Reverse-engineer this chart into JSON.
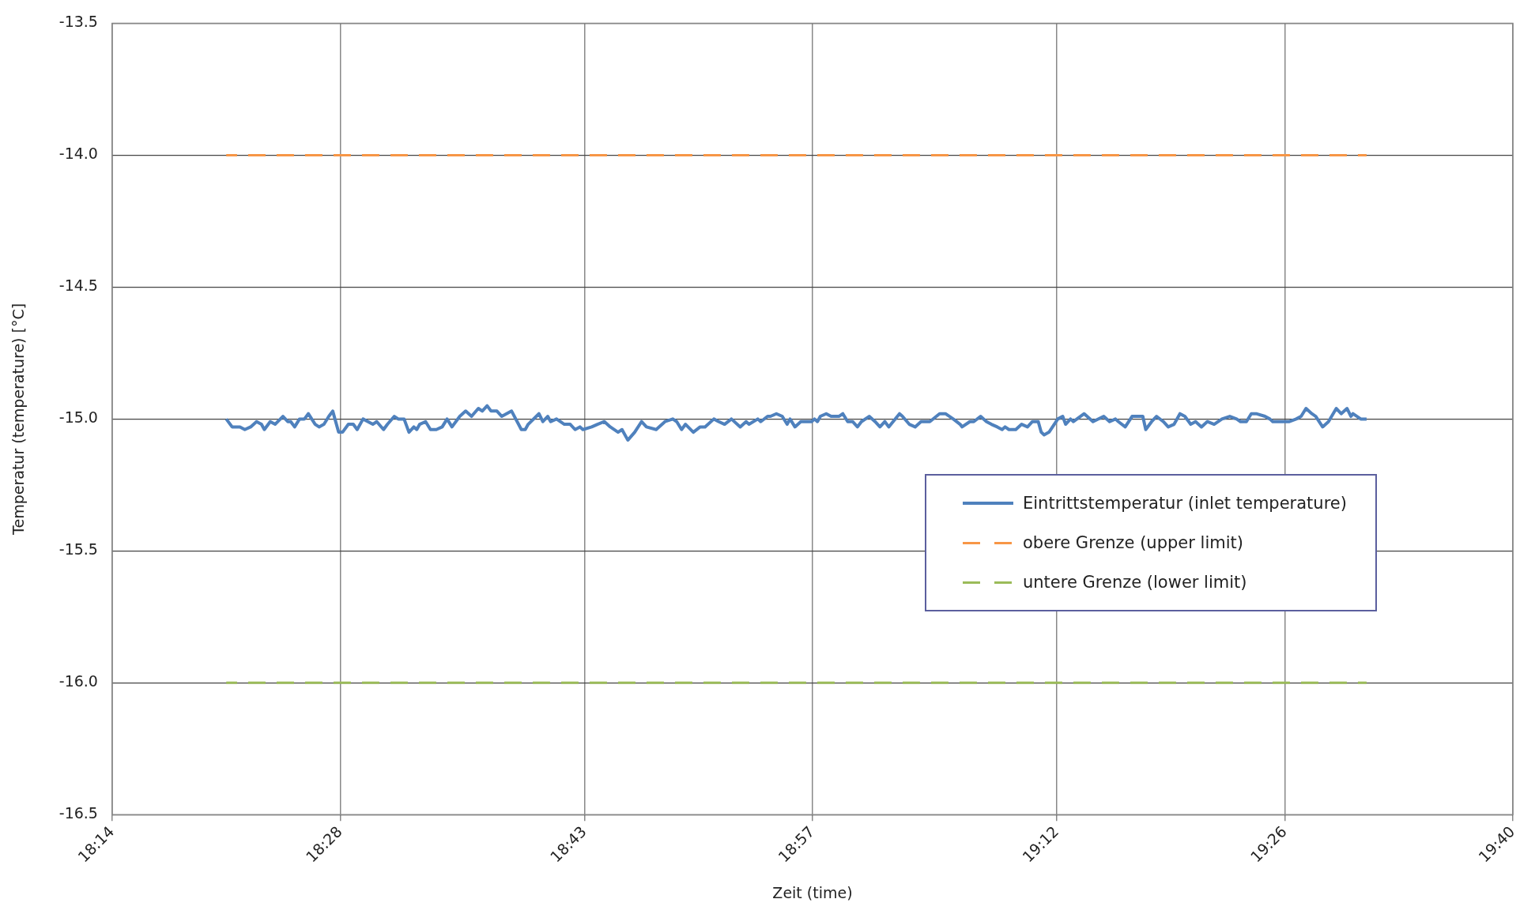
{
  "chart_data": {
    "type": "line",
    "xlabel": "Zeit (time)",
    "ylabel": "Temperatur (temperature) [°C]",
    "xlim": [
      18.2333,
      19.6667
    ],
    "xticks": [
      {
        "value": 18.2333,
        "label": "18:14"
      },
      {
        "value": 18.4667,
        "label": "18:28"
      },
      {
        "value": 18.7167,
        "label": "18:43"
      },
      {
        "value": 18.95,
        "label": "18:57"
      },
      {
        "value": 19.2,
        "label": "19:12"
      },
      {
        "value": 19.4333,
        "label": "19:26"
      },
      {
        "value": 19.6667,
        "label": "19:40"
      }
    ],
    "ylim": [
      -16.5,
      -13.5
    ],
    "yticks": [
      {
        "value": -16.5,
        "label": "-16.5"
      },
      {
        "value": -16,
        "label": "-16.0"
      },
      {
        "value": -15.5,
        "label": "-15.5"
      },
      {
        "value": -15,
        "label": "-15.0"
      },
      {
        "value": -14.5,
        "label": "-14.5"
      },
      {
        "value": -14,
        "label": "-14.0"
      },
      {
        "value": -13.5,
        "label": "-13.5"
      }
    ],
    "grid": true,
    "legend": "right",
    "marker": "none",
    "series": [
      {
        "name": "Eintrittstemperatur (inlet temperature)",
        "color": "#4f81bd",
        "line_style": "solid",
        "x": [
          18.35,
          18.356,
          18.364,
          18.369,
          18.375,
          18.381,
          18.386,
          18.389,
          18.395,
          18.4,
          18.408,
          18.413,
          18.416,
          18.42,
          18.425,
          18.43,
          18.434,
          18.441,
          18.445,
          18.45,
          18.455,
          18.459,
          18.465,
          18.469,
          18.475,
          18.48,
          18.484,
          18.49,
          18.495,
          18.5,
          18.504,
          18.511,
          18.515,
          18.522,
          18.526,
          18.532,
          18.537,
          18.542,
          18.545,
          18.548,
          18.554,
          18.559,
          18.565,
          18.571,
          18.576,
          18.581,
          18.589,
          18.595,
          18.601,
          18.608,
          18.612,
          18.617,
          18.621,
          18.627,
          18.632,
          18.642,
          18.652,
          18.656,
          18.659,
          18.67,
          18.674,
          18.679,
          18.682,
          18.688,
          18.696,
          18.702,
          18.707,
          18.712,
          18.715,
          18.724,
          18.73,
          18.737,
          18.743,
          18.751,
          18.755,
          18.761,
          18.768,
          18.775,
          18.78,
          18.79,
          18.799,
          18.807,
          18.811,
          18.816,
          18.82,
          18.828,
          18.835,
          18.84,
          18.849,
          18.854,
          18.86,
          18.867,
          18.876,
          18.882,
          18.885,
          18.894,
          18.897,
          18.904,
          18.907,
          18.913,
          18.919,
          18.924,
          18.927,
          18.932,
          18.938,
          18.949,
          18.952,
          18.955,
          18.958,
          18.964,
          18.969,
          18.977,
          18.981,
          18.986,
          18.991,
          18.996,
          19.0,
          19.008,
          19.014,
          19.019,
          19.024,
          19.028,
          19.039,
          19.042,
          19.049,
          19.055,
          19.061,
          19.07,
          19.08,
          19.086,
          19.094,
          19.101,
          19.103,
          19.111,
          19.115,
          19.122,
          19.128,
          19.133,
          19.139,
          19.144,
          19.147,
          19.151,
          19.158,
          19.164,
          19.17,
          19.175,
          19.181,
          19.184,
          19.187,
          19.192,
          19.201,
          19.206,
          19.209,
          19.214,
          19.217,
          19.228,
          19.237,
          19.248,
          19.254,
          19.26,
          19.263,
          19.27,
          19.277,
          19.285,
          19.288,
          19.291,
          19.297,
          19.302,
          19.309,
          19.314,
          19.32,
          19.326,
          19.331,
          19.337,
          19.342,
          19.348,
          19.354,
          19.361,
          19.369,
          19.377,
          19.384,
          19.388,
          19.394,
          19.399,
          19.404,
          19.413,
          19.418,
          19.421,
          19.426,
          19.429,
          19.438,
          19.445,
          19.45,
          19.455,
          19.461,
          19.465,
          19.472,
          19.478,
          19.486,
          19.491,
          19.497,
          19.501,
          19.503,
          19.511,
          19.517
        ],
        "values": [
          -15.0,
          -15.03,
          -15.03,
          -15.04,
          -15.03,
          -15.01,
          -15.02,
          -15.04,
          -15.01,
          -15.02,
          -14.99,
          -15.01,
          -15.01,
          -15.03,
          -15.0,
          -15.0,
          -14.98,
          -15.02,
          -15.03,
          -15.02,
          -14.99,
          -14.97,
          -15.05,
          -15.05,
          -15.02,
          -15.02,
          -15.04,
          -15.0,
          -15.01,
          -15.02,
          -15.01,
          -15.04,
          -15.02,
          -14.99,
          -15.0,
          -15.0,
          -15.05,
          -15.03,
          -15.04,
          -15.02,
          -15.01,
          -15.04,
          -15.04,
          -15.03,
          -15.0,
          -15.03,
          -14.99,
          -14.97,
          -14.99,
          -14.96,
          -14.97,
          -14.95,
          -14.97,
          -14.97,
          -14.99,
          -14.97,
          -15.04,
          -15.04,
          -15.02,
          -14.98,
          -15.01,
          -14.99,
          -15.01,
          -15.0,
          -15.02,
          -15.02,
          -15.04,
          -15.03,
          -15.04,
          -15.03,
          -15.02,
          -15.01,
          -15.03,
          -15.05,
          -15.04,
          -15.08,
          -15.05,
          -15.01,
          -15.03,
          -15.04,
          -15.01,
          -15.0,
          -15.01,
          -15.04,
          -15.02,
          -15.05,
          -15.03,
          -15.03,
          -15.0,
          -15.01,
          -15.02,
          -15.0,
          -15.03,
          -15.01,
          -15.02,
          -15.0,
          -15.01,
          -14.99,
          -14.99,
          -14.98,
          -14.99,
          -15.02,
          -15.0,
          -15.03,
          -15.01,
          -15.01,
          -15.0,
          -15.01,
          -14.99,
          -14.98,
          -14.99,
          -14.99,
          -14.98,
          -15.01,
          -15.01,
          -15.03,
          -15.01,
          -14.99,
          -15.01,
          -15.03,
          -15.01,
          -15.03,
          -14.98,
          -14.99,
          -15.02,
          -15.03,
          -15.01,
          -15.01,
          -14.98,
          -14.98,
          -15.0,
          -15.02,
          -15.03,
          -15.01,
          -15.01,
          -14.99,
          -15.01,
          -15.02,
          -15.03,
          -15.04,
          -15.03,
          -15.04,
          -15.04,
          -15.02,
          -15.03,
          -15.01,
          -15.01,
          -15.05,
          -15.06,
          -15.05,
          -15.0,
          -14.99,
          -15.02,
          -15.0,
          -15.01,
          -14.98,
          -15.01,
          -14.99,
          -15.01,
          -15.0,
          -15.01,
          -15.03,
          -14.99,
          -14.99,
          -14.99,
          -15.04,
          -15.01,
          -14.99,
          -15.01,
          -15.03,
          -15.02,
          -14.98,
          -14.99,
          -15.02,
          -15.01,
          -15.03,
          -15.01,
          -15.02,
          -15.0,
          -14.99,
          -15.0,
          -15.01,
          -15.01,
          -14.98,
          -14.98,
          -14.99,
          -15.0,
          -15.01,
          -15.01,
          -15.01,
          -15.01,
          -15.0,
          -14.99,
          -14.96,
          -14.98,
          -14.99,
          -15.03,
          -15.01,
          -14.96,
          -14.98,
          -14.96,
          -14.99,
          -14.98,
          -15.0,
          -15.0
        ]
      },
      {
        "name": "obere Grenze (upper limit)",
        "color": "#f79646",
        "line_style": "dashed",
        "x": [
          18.35,
          19.517
        ],
        "values": [
          -14,
          -14
        ]
      },
      {
        "name": "untere Grenze (lower limit)",
        "color": "#9bbb59",
        "line_style": "dashed",
        "x": [
          18.35,
          19.517
        ],
        "values": [
          -16,
          -16
        ]
      }
    ]
  }
}
